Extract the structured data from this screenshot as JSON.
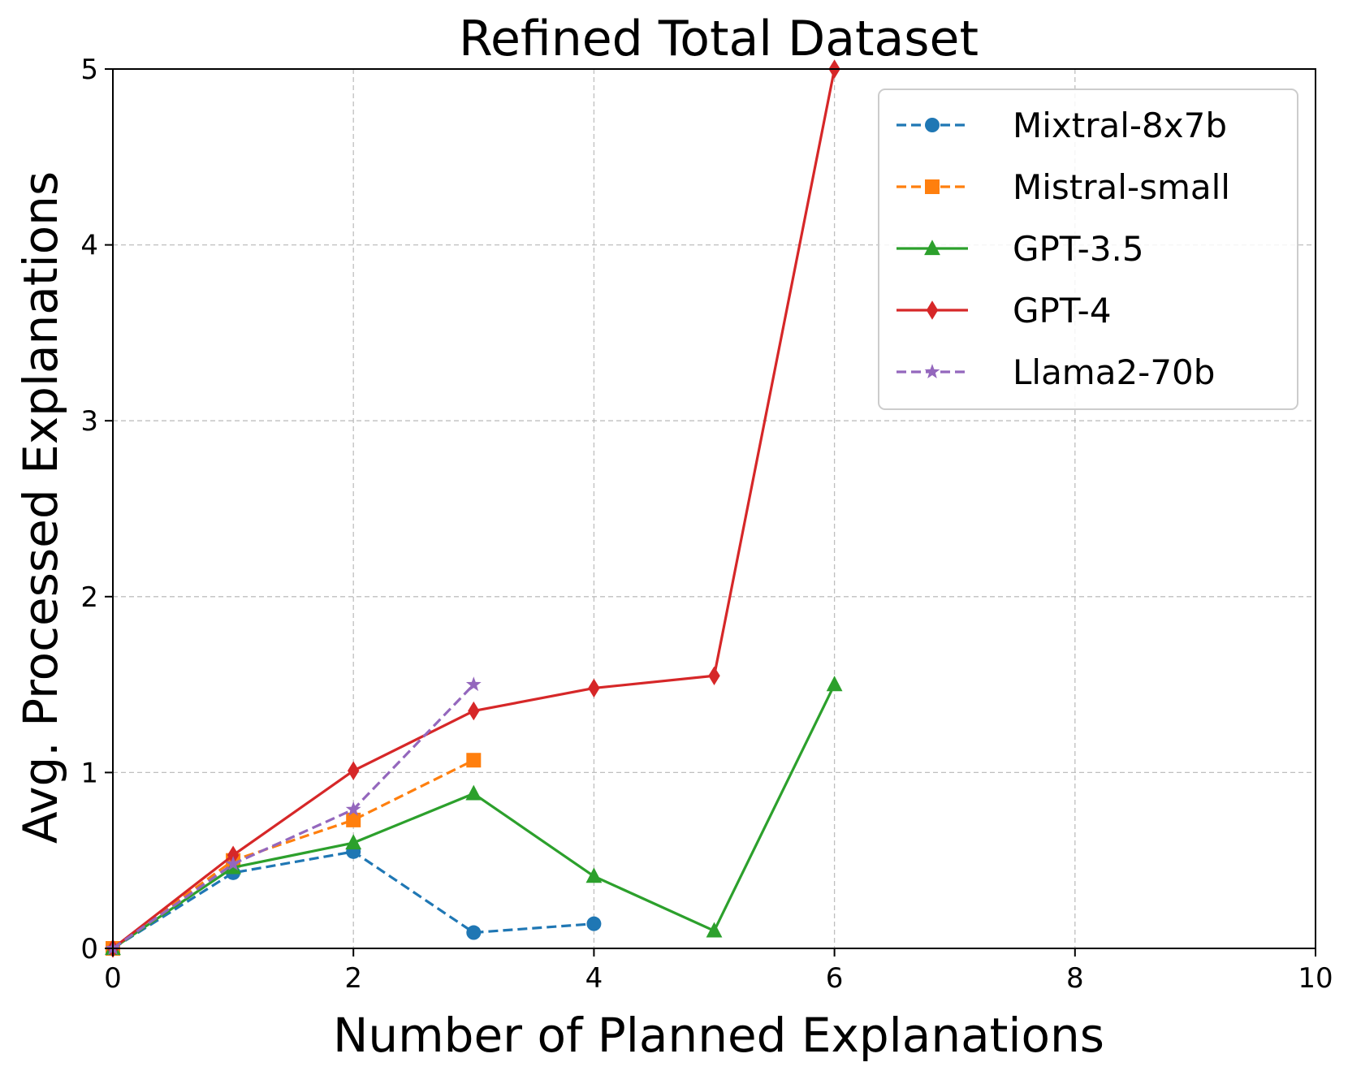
{
  "chart_data": {
    "type": "line",
    "title": "Refined Total Dataset",
    "xlabel": "Number of Planned Explanations",
    "ylabel": "Avg. Processed Explanations",
    "xlim": [
      0,
      10
    ],
    "ylim": [
      0,
      5
    ],
    "xticks": [
      0,
      2,
      4,
      6,
      8,
      10
    ],
    "yticks": [
      0,
      1,
      2,
      3,
      4,
      5
    ],
    "grid": true,
    "legend_position": "top-right",
    "series": [
      {
        "name": "Mixtral-8x7b",
        "color": "#1f77b4",
        "dash": "dashed",
        "marker": "circle",
        "x": [
          0,
          1,
          2,
          3,
          4
        ],
        "y": [
          0,
          0.43,
          0.55,
          0.09,
          0.14
        ]
      },
      {
        "name": "Mistral-small",
        "color": "#ff7f0e",
        "dash": "dashed",
        "marker": "square",
        "x": [
          0,
          1,
          2,
          3
        ],
        "y": [
          0,
          0.5,
          0.73,
          1.07
        ]
      },
      {
        "name": "GPT-3.5",
        "color": "#2ca02c",
        "dash": "solid",
        "marker": "triangle",
        "x": [
          0,
          1,
          2,
          3,
          4,
          5,
          6
        ],
        "y": [
          0,
          0.46,
          0.6,
          0.88,
          0.41,
          0.1,
          1.5
        ]
      },
      {
        "name": "GPT-4",
        "color": "#d62728",
        "dash": "solid",
        "marker": "diamond",
        "x": [
          0,
          1,
          2,
          3,
          4,
          5,
          6
        ],
        "y": [
          0,
          0.53,
          1.01,
          1.35,
          1.48,
          1.55,
          5.0
        ]
      },
      {
        "name": "Llama2-70b",
        "color": "#9467bd",
        "dash": "dashed",
        "marker": "star",
        "x": [
          0,
          1,
          2,
          3
        ],
        "y": [
          0,
          0.48,
          0.79,
          1.5
        ]
      }
    ]
  }
}
